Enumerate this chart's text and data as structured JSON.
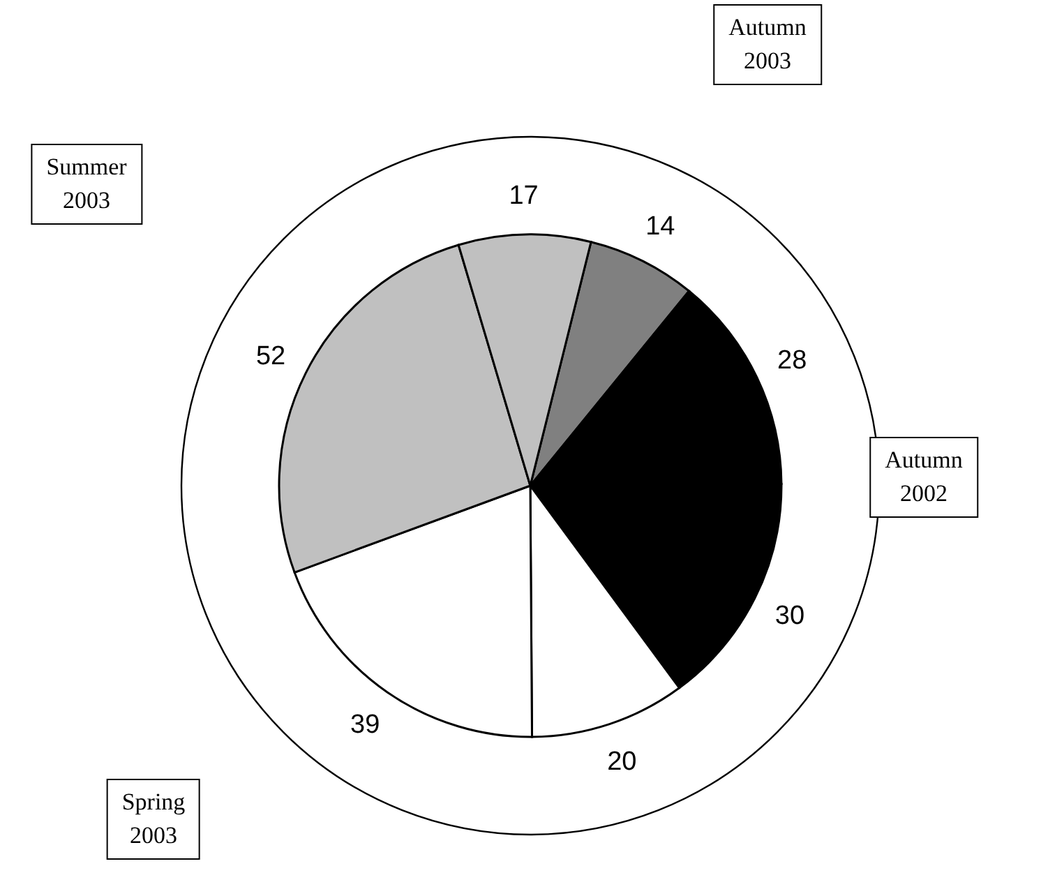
{
  "chart_data": {
    "type": "pie",
    "categories": [
      null,
      null,
      null,
      null,
      null,
      null,
      null
    ],
    "values": [
      14,
      28,
      30,
      20,
      39,
      52,
      17
    ],
    "colors": [
      "#808080",
      "#000000",
      "#000000",
      "#ffffff",
      "#ffffff",
      "#c0c0c0",
      "#c0c0c0"
    ],
    "data_labels": true,
    "annotations": [
      "Autumn 2003",
      "Summer 2003",
      "Autumn 2002",
      "Spring 2003"
    ]
  }
}
